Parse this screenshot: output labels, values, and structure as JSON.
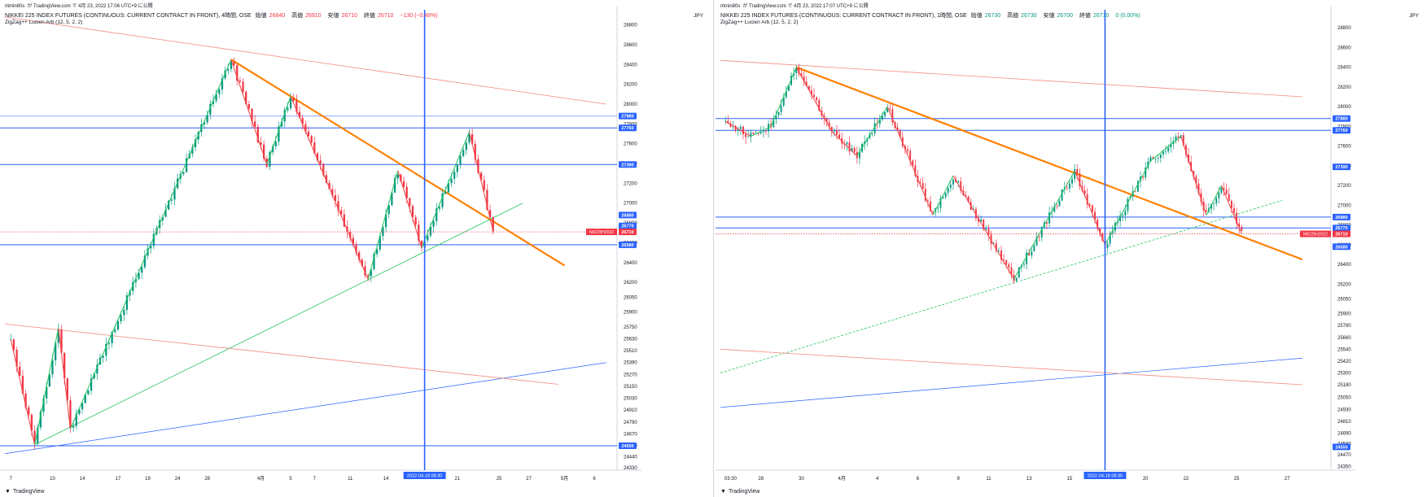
{
  "colors": {
    "up": "#089981",
    "down": "#f23645",
    "zigzag_up": "#22c55e",
    "zigzag_down": "#ef4444",
    "trend_orange": "#ff8000",
    "blue_line": "#2962ff",
    "channel_red": "#f28b82",
    "grid": "#eef0f3",
    "axis_text": "#131722",
    "label_blue_bg": "#2962ff",
    "label_red_bg": "#f23645",
    "label_green_bg": "#089981"
  },
  "left": {
    "header": {
      "author": "ritmin80s",
      "via": "が TradingView.com で 4月 23, 2022 17:06 UTC+9 に公開",
      "symbol": "NIKKEI 225 INDEX FUTURES (CONTINUOUS: CURRENT CONTRACT IN FRONT), 4時間, OSE",
      "o_label": "始値",
      "o": "26840",
      "h_label": "高値",
      "h": "26910",
      "l_label": "安値",
      "l": "26710",
      "c_label": "終値",
      "c": "26710",
      "chg": "−130 (−0.48%)",
      "indicator": "ZigZag++ Lucien Arb (12, 5, 2, 2)"
    },
    "unit": "JPY",
    "brand": "TradingView",
    "chart_data": {
      "type": "candlestick",
      "timeframe": "4h",
      "ylim": [
        24320,
        28920
      ],
      "x_range": [
        0,
        102
      ],
      "y_ticks": [
        28800,
        28600,
        28400,
        28200,
        28000,
        27800,
        27600,
        27400,
        27200,
        27000,
        26800,
        26600,
        26400,
        26200,
        26050,
        25900,
        25750,
        25630,
        25510,
        25390,
        25270,
        25150,
        25030,
        24910,
        24790,
        24670,
        24550,
        24440,
        24330
      ],
      "x_ticks": [
        {
          "label": "7",
          "x": 1
        },
        {
          "label": "10",
          "x": 8
        },
        {
          "label": "14",
          "x": 13
        },
        {
          "label": "17",
          "x": 19
        },
        {
          "label": "19",
          "x": 24
        },
        {
          "label": "24",
          "x": 29
        },
        {
          "label": "28",
          "x": 34
        },
        {
          "label": "4月",
          "x": 43
        },
        {
          "label": "5",
          "x": 48
        },
        {
          "label": "7",
          "x": 52
        },
        {
          "label": "11",
          "x": 58
        },
        {
          "label": "14",
          "x": 64
        },
        {
          "label": "21",
          "x": 76
        },
        {
          "label": "25",
          "x": 83
        },
        {
          "label": "27",
          "x": 88
        },
        {
          "label": "5月",
          "x": 94
        },
        {
          "label": "6",
          "x": 99
        }
      ],
      "vline": {
        "x": 70.5,
        "label": "2022-04-18  08:30"
      },
      "horizontal_lines": [
        {
          "y": 27880,
          "color": "blue-light",
          "label": "27880"
        },
        {
          "y": 27760,
          "color": "blue",
          "label": "27760"
        },
        {
          "y": 27390,
          "color": "blue",
          "label": "27390"
        },
        {
          "y": 26880,
          "color": "none",
          "label": "26880"
        },
        {
          "y": 26770,
          "color": "none",
          "label": "26770"
        },
        {
          "y": 26580,
          "color": "blue",
          "label": "26580"
        },
        {
          "y": 24550,
          "color": "blue",
          "label": "24550"
        }
      ],
      "price_line": {
        "y": 26710,
        "symbol_label": "NK225H2022",
        "label": "26710"
      },
      "trend_lines": [
        {
          "kind": "orange",
          "x1": 38,
          "y1": 28450,
          "x2": 94,
          "y2": 26370
        },
        {
          "kind": "green-thin",
          "x1": 5,
          "y1": 24560,
          "x2": 87,
          "y2": 27000
        },
        {
          "kind": "blue-thin",
          "x1": 0,
          "y1": 24470,
          "x2": 101,
          "y2": 25390
        },
        {
          "kind": "red-thin",
          "x1": 0,
          "y1": 28880,
          "x2": 101,
          "y2": 28000
        },
        {
          "kind": "red-thin",
          "x1": 0,
          "y1": 25780,
          "x2": 93,
          "y2": 25170
        }
      ],
      "zigzag": [
        {
          "x": 1,
          "y": 25620
        },
        {
          "x": 5,
          "y": 24560
        },
        {
          "x": 9,
          "y": 25740
        },
        {
          "x": 11,
          "y": 24720
        },
        {
          "x": 38,
          "y": 28450
        },
        {
          "x": 44,
          "y": 27390
        },
        {
          "x": 48,
          "y": 28080
        },
        {
          "x": 61,
          "y": 26230
        },
        {
          "x": 66,
          "y": 27330
        },
        {
          "x": 70,
          "y": 26550
        },
        {
          "x": 78,
          "y": 27720
        },
        {
          "x": 82,
          "y": 26720
        }
      ]
    }
  },
  "right": {
    "header": {
      "author": "ritmin80s",
      "via": "が TradingView.com で 4月 23, 2022 17:07 UTC+9 に公開",
      "symbol": "NIKKEI 225 INDEX FUTURES (CONTINUOUS: CURRENT CONTRACT IN FRONT), 1時間, OSE",
      "o_label": "始値",
      "o": "26730",
      "h_label": "高値",
      "h": "26730",
      "l_label": "安値",
      "l": "26700",
      "c_label": "終値",
      "c": "26710",
      "chg": "0 (0.00%)",
      "indicator": "ZigZag++ Lucien Arb (12, 5, 2, 2)"
    },
    "unit": "JPY",
    "brand": "TradingView",
    "chart_data": {
      "type": "candlestick",
      "timeframe": "1h",
      "ylim": [
        24330,
        28950
      ],
      "x_range": [
        0,
        120
      ],
      "y_ticks": [
        28800,
        28600,
        28400,
        28200,
        28000,
        27800,
        27600,
        27400,
        27200,
        27000,
        26800,
        26600,
        26400,
        26200,
        26050,
        25900,
        25780,
        25660,
        25540,
        25420,
        25300,
        25180,
        25050,
        24930,
        24810,
        24690,
        24580,
        24470,
        24350
      ],
      "x_ticks": [
        {
          "label": "03:30",
          "x": 2
        },
        {
          "label": "28",
          "x": 8
        },
        {
          "label": "30",
          "x": 16
        },
        {
          "label": "4月",
          "x": 24
        },
        {
          "label": "4",
          "x": 31
        },
        {
          "label": "6",
          "x": 39
        },
        {
          "label": "9",
          "x": 47
        },
        {
          "label": "11",
          "x": 53
        },
        {
          "label": "13",
          "x": 61
        },
        {
          "label": "15",
          "x": 69
        },
        {
          "label": "20",
          "x": 84
        },
        {
          "label": "22",
          "x": 92
        },
        {
          "label": "25",
          "x": 102
        },
        {
          "label": "27",
          "x": 112
        }
      ],
      "vline": {
        "x": 76,
        "label": "2022-04-18  08:30"
      },
      "horizontal_lines": [
        {
          "y": 27880,
          "color": "blue",
          "label": "27880"
        },
        {
          "y": 27760,
          "color": "blue",
          "label": "27760"
        },
        {
          "y": 27390,
          "color": "none",
          "label": "27390"
        },
        {
          "y": 26880,
          "color": "blue",
          "label": "26880"
        },
        {
          "y": 26770,
          "color": "blue",
          "label": "26770"
        },
        {
          "y": 26580,
          "color": "none",
          "label": "26580"
        },
        {
          "y": 24550,
          "color": "none",
          "label": "24550"
        }
      ],
      "price_line": {
        "y": 26710,
        "symbol_label": "NK225H2022",
        "label": "26710"
      },
      "trend_lines": [
        {
          "kind": "orange",
          "x1": 15,
          "y1": 28400,
          "x2": 115,
          "y2": 26450
        },
        {
          "kind": "green-dash",
          "x1": 0,
          "y1": 25300,
          "x2": 111,
          "y2": 27050
        },
        {
          "kind": "blue-thin",
          "x1": 0,
          "y1": 24950,
          "x2": 115,
          "y2": 25450
        },
        {
          "kind": "red-thin",
          "x1": 0,
          "y1": 28470,
          "x2": 115,
          "y2": 28100
        },
        {
          "kind": "red-thin",
          "x1": 0,
          "y1": 25540,
          "x2": 115,
          "y2": 25180
        }
      ],
      "zigzag": [
        {
          "x": 1,
          "y": 27850
        },
        {
          "x": 6,
          "y": 27700
        },
        {
          "x": 10,
          "y": 27800
        },
        {
          "x": 15,
          "y": 28400
        },
        {
          "x": 22,
          "y": 27750
        },
        {
          "x": 27,
          "y": 27500
        },
        {
          "x": 33,
          "y": 28000
        },
        {
          "x": 42,
          "y": 26900
        },
        {
          "x": 46,
          "y": 27300
        },
        {
          "x": 58,
          "y": 26250
        },
        {
          "x": 70,
          "y": 27350
        },
        {
          "x": 76,
          "y": 26600
        },
        {
          "x": 85,
          "y": 27450
        },
        {
          "x": 91,
          "y": 27700
        },
        {
          "x": 96,
          "y": 26900
        },
        {
          "x": 99,
          "y": 27200
        },
        {
          "x": 103,
          "y": 26710
        }
      ]
    }
  }
}
